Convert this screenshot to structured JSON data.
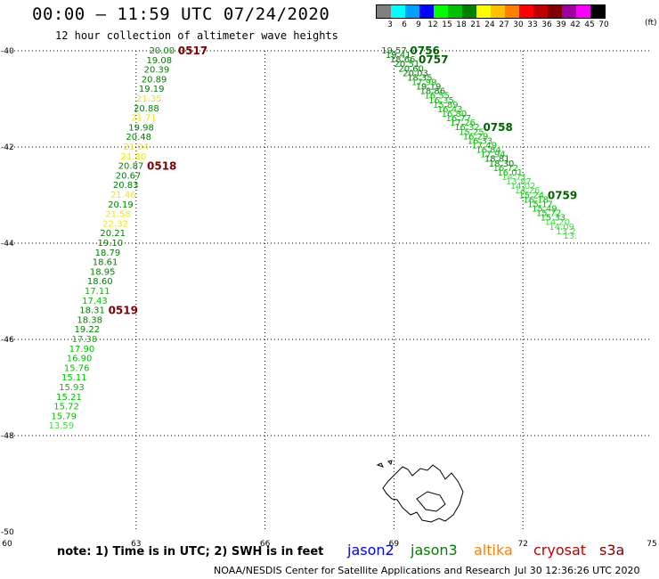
{
  "header": {
    "title": "00:00 — 11:59 UTC 07/24/2020",
    "subtitle": "12 hour collection of altimeter wave heights"
  },
  "legend": {
    "unit_label": "(ft)",
    "bins": [
      {
        "label": "3",
        "color": "#808080"
      },
      {
        "label": "6",
        "color": "#00ffff"
      },
      {
        "label": "9",
        "color": "#00a0ff"
      },
      {
        "label": "12",
        "color": "#0000ff"
      },
      {
        "label": "15",
        "color": "#00ff00"
      },
      {
        "label": "18",
        "color": "#00c000"
      },
      {
        "label": "21",
        "color": "#008000"
      },
      {
        "label": "24",
        "color": "#ffff00"
      },
      {
        "label": "27",
        "color": "#ffc000"
      },
      {
        "label": "30",
        "color": "#ff8000"
      },
      {
        "label": "33",
        "color": "#ff0000"
      },
      {
        "label": "36",
        "color": "#c00000"
      },
      {
        "label": "39",
        "color": "#800000"
      },
      {
        "label": "42",
        "color": "#a000a0"
      },
      {
        "label": "45",
        "color": "#ff00ff"
      },
      {
        "label": "70",
        "color": "#000000"
      }
    ]
  },
  "map": {
    "lon_range": [
      60,
      75
    ],
    "lat_range": [
      -40,
      -50
    ],
    "x_ticks": [
      "60",
      "63",
      "66",
      "69",
      "72",
      "75"
    ],
    "y_ticks": [
      "-40",
      "-42",
      "-44",
      "-46",
      "-48",
      "-50"
    ],
    "gridlines": true,
    "land_feature": "island outline near 69-71E, 48.5-49.8S",
    "tracks": [
      {
        "name": "west_track",
        "start": {
          "lon": 63.6,
          "lat": -40.0
        },
        "step": {
          "lon": -0.06,
          "lat": 0.2
        },
        "values": [
          "20.00",
          "19.08",
          "20.39",
          "20.89",
          "19.19",
          "21.35",
          "20.88",
          "21.71",
          "19.98",
          "20.48",
          "21.04",
          "21.30",
          "20.87",
          "20.67",
          "20.83",
          "21.46",
          "20.19",
          "21.58",
          "22.32",
          "20.21",
          "19.10",
          "18.79",
          "18.61",
          "18.95",
          "18.60",
          "17.11",
          "17.43",
          "18.31",
          "18.38",
          "19.22",
          "17.38",
          "17.90",
          "16.90",
          "15.76",
          "15.11",
          "15.93",
          "15.21",
          "15.72",
          "15.79",
          "13.59"
        ],
        "time_labels": [
          {
            "text": "0517",
            "index": 0,
            "color": "#800000"
          },
          {
            "text": "0518",
            "index": 12,
            "color": "#800000"
          },
          {
            "text": "0519",
            "index": 27,
            "color": "#800000"
          }
        ]
      },
      {
        "name": "east_track",
        "start": {
          "lon": 69.0,
          "lat": -40.0
        },
        "step": {
          "lon": 0.1,
          "lat": 0.0939
        },
        "values": [
          "19.57",
          "19.41",
          "18.66",
          "20.51",
          "20.60",
          "20.03",
          "18.35",
          "17.99",
          "19.19",
          "18.86",
          "16.55",
          "16.35",
          "15.89",
          "16.43",
          "16.80",
          "16.77",
          "17.26",
          "16.32",
          "15.25",
          "16.29",
          "16.33",
          "17.49",
          "16.84",
          "17.94",
          "18.81",
          "18.30",
          "16.72",
          "16.01",
          "14.71",
          "13.87",
          "14.02",
          "14.26",
          "15.24",
          "16.18",
          "15.17",
          "15.49",
          "15.72",
          "15.33",
          "14.20",
          "14.09",
          "13.2",
          "13."
        ],
        "time_labels": [
          {
            "text": "0756",
            "index": 0,
            "color": "#006400"
          },
          {
            "text": "0757",
            "index": 2,
            "color": "#006400"
          },
          {
            "text": "0758",
            "index": 17,
            "color": "#006400"
          },
          {
            "text": "0759",
            "index": 32,
            "color": "#006400"
          }
        ]
      }
    ]
  },
  "footer": {
    "note": "note:  1) Time is in UTC;  2) SWH is in feet",
    "satellites": [
      {
        "label": "jason2",
        "color": "#0000ff"
      },
      {
        "label": "jason3",
        "color": "#008000"
      },
      {
        "label": "altika",
        "color": "#ff8000"
      },
      {
        "label": "cryosat",
        "color": "#c00000"
      },
      {
        "label": "s3a",
        "color": "#800000"
      }
    ],
    "credit": "NOAA/NESDIS Center for Satellite Applications and Research",
    "generated": "Jul 30 12:36:26 UTC 2020"
  }
}
